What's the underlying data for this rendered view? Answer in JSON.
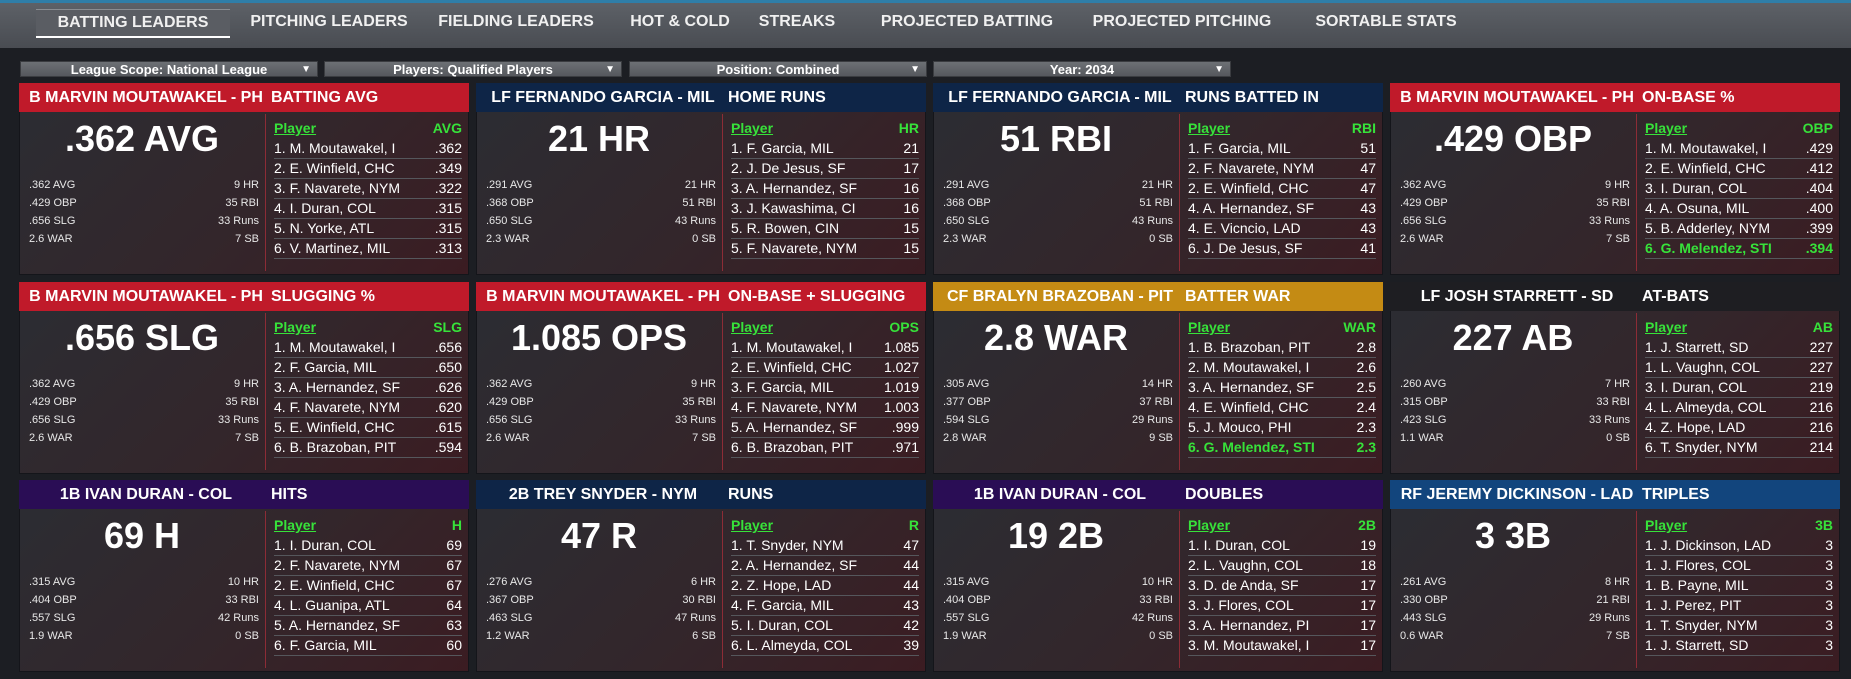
{
  "tabs": [
    "BATTING LEADERS",
    "PITCHING LEADERS",
    "FIELDING LEADERS",
    "HOT & COLD",
    "STREAKS",
    "PROJECTED BATTING",
    "PROJECTED PITCHING",
    "SORTABLE STATS"
  ],
  "filters": [
    "League Scope: National League",
    "Players: Qualified Players",
    "Position: Combined",
    "Year: 2034"
  ],
  "colors": {
    "red": "#c01a2a",
    "navy": "#0e2547",
    "gold": "#c48b14",
    "dark": "#1e1e22",
    "purple": "#2a0d55",
    "blue": "#12457d",
    "highlight": "#37e23a"
  },
  "cards": [
    {
      "name": "B MARVIN MOUTAWAKEL - PH",
      "category": "BATTING AVG",
      "color": "red",
      "big": ".362 AVG",
      "stats": [
        [
          ".362 AVG",
          "9 HR"
        ],
        [
          ".429 OBP",
          "35 RBI"
        ],
        [
          ".656 SLG",
          "33 Runs"
        ],
        [
          "2.6 WAR",
          "7 SB"
        ]
      ],
      "col": "AVG",
      "rows": [
        [
          "1. M. Moutawakel, I",
          ".362"
        ],
        [
          "2. E. Winfield, CHC",
          ".349"
        ],
        [
          "3. F. Navarete, NYM",
          ".322"
        ],
        [
          "4. I. Duran, COL",
          ".315"
        ],
        [
          "5. N. Yorke, ATL",
          ".315"
        ],
        [
          "6. V. Martinez, MIL",
          ".313"
        ]
      ],
      "hl": -1
    },
    {
      "name": "LF FERNANDO GARCIA - MIL",
      "category": "HOME RUNS",
      "color": "navy",
      "big": "21 HR",
      "stats": [
        [
          ".291 AVG",
          "21 HR"
        ],
        [
          ".368 OBP",
          "51 RBI"
        ],
        [
          ".650 SLG",
          "43 Runs"
        ],
        [
          "2.3 WAR",
          "0 SB"
        ]
      ],
      "col": "HR",
      "rows": [
        [
          "1. F. Garcia, MIL",
          "21"
        ],
        [
          "2. J. De Jesus, SF",
          "17"
        ],
        [
          "3. A. Hernandez, SF",
          "16"
        ],
        [
          "3. J. Kawashima, CI",
          "16"
        ],
        [
          "5. R. Bowen, CIN",
          "15"
        ],
        [
          "5. F. Navarete, NYM",
          "15"
        ]
      ],
      "hl": -1
    },
    {
      "name": "LF FERNANDO GARCIA - MIL",
      "category": "RUNS BATTED IN",
      "color": "navy",
      "big": "51 RBI",
      "stats": [
        [
          ".291 AVG",
          "21 HR"
        ],
        [
          ".368 OBP",
          "51 RBI"
        ],
        [
          ".650 SLG",
          "43 Runs"
        ],
        [
          "2.3 WAR",
          "0 SB"
        ]
      ],
      "col": "RBI",
      "rows": [
        [
          "1. F. Garcia, MIL",
          "51"
        ],
        [
          "2. F. Navarete, NYM",
          "47"
        ],
        [
          "2. E. Winfield, CHC",
          "47"
        ],
        [
          "4. A. Hernandez, SF",
          "43"
        ],
        [
          "4. E. Vicncio, LAD",
          "43"
        ],
        [
          "6. J. De Jesus, SF",
          "41"
        ]
      ],
      "hl": -1
    },
    {
      "name": "B MARVIN MOUTAWAKEL - PH",
      "category": "ON-BASE %",
      "color": "red",
      "big": ".429 OBP",
      "stats": [
        [
          ".362 AVG",
          "9 HR"
        ],
        [
          ".429 OBP",
          "35 RBI"
        ],
        [
          ".656 SLG",
          "33 Runs"
        ],
        [
          "2.6 WAR",
          "7 SB"
        ]
      ],
      "col": "OBP",
      "rows": [
        [
          "1. M. Moutawakel, I",
          ".429"
        ],
        [
          "2. E. Winfield, CHC",
          ".412"
        ],
        [
          "3. I. Duran, COL",
          ".404"
        ],
        [
          "4. A. Osuna, MIL",
          ".400"
        ],
        [
          "5. B. Adderley, NYM",
          ".399"
        ],
        [
          "6. G. Melendez, STI",
          ".394"
        ]
      ],
      "hl": 5
    },
    {
      "name": "B MARVIN MOUTAWAKEL - PH",
      "category": "SLUGGING %",
      "color": "red",
      "big": ".656 SLG",
      "stats": [
        [
          ".362 AVG",
          "9 HR"
        ],
        [
          ".429 OBP",
          "35 RBI"
        ],
        [
          ".656 SLG",
          "33 Runs"
        ],
        [
          "2.6 WAR",
          "7 SB"
        ]
      ],
      "col": "SLG",
      "rows": [
        [
          "1. M. Moutawakel, I",
          ".656"
        ],
        [
          "2. F. Garcia, MIL",
          ".650"
        ],
        [
          "3. A. Hernandez, SF",
          ".626"
        ],
        [
          "4. F. Navarete, NYM",
          ".620"
        ],
        [
          "5. E. Winfield, CHC",
          ".615"
        ],
        [
          "6. B. Brazoban, PIT",
          ".594"
        ]
      ],
      "hl": -1
    },
    {
      "name": "B MARVIN MOUTAWAKEL - PH",
      "category": "ON-BASE + SLUGGING",
      "color": "red",
      "big": "1.085 OPS",
      "stats": [
        [
          ".362 AVG",
          "9 HR"
        ],
        [
          ".429 OBP",
          "35 RBI"
        ],
        [
          ".656 SLG",
          "33 Runs"
        ],
        [
          "2.6 WAR",
          "7 SB"
        ]
      ],
      "col": "OPS",
      "rows": [
        [
          "1. M. Moutawakel, I",
          "1.085"
        ],
        [
          "2. E. Winfield, CHC",
          "1.027"
        ],
        [
          "3. F. Garcia, MIL",
          "1.019"
        ],
        [
          "4. F. Navarete, NYM",
          "1.003"
        ],
        [
          "5. A. Hernandez, SF",
          ".999"
        ],
        [
          "6. B. Brazoban, PIT",
          ".971"
        ]
      ],
      "hl": -1
    },
    {
      "name": "CF BRALYN BRAZOBAN - PIT",
      "category": "BATTER WAR",
      "color": "gold",
      "big": "2.8 WAR",
      "stats": [
        [
          ".305 AVG",
          "14 HR"
        ],
        [
          ".377 OBP",
          "37 RBI"
        ],
        [
          ".594 SLG",
          "29 Runs"
        ],
        [
          "2.8 WAR",
          "9 SB"
        ]
      ],
      "col": "WAR",
      "rows": [
        [
          "1. B. Brazoban, PIT",
          "2.8"
        ],
        [
          "2. M. Moutawakel, I",
          "2.6"
        ],
        [
          "3. A. Hernandez, SF",
          "2.5"
        ],
        [
          "4. E. Winfield, CHC",
          "2.4"
        ],
        [
          "5. J. Mouco, PHI",
          "2.3"
        ],
        [
          "6. G. Melendez, STI",
          "2.3"
        ]
      ],
      "hl": 5
    },
    {
      "name": "LF JOSH STARRETT - SD",
      "category": "AT-BATS",
      "color": "dark",
      "big": "227 AB",
      "stats": [
        [
          ".260 AVG",
          "7 HR"
        ],
        [
          ".315 OBP",
          "33 RBI"
        ],
        [
          ".423 SLG",
          "33 Runs"
        ],
        [
          "1.1 WAR",
          "0 SB"
        ]
      ],
      "col": "AB",
      "rows": [
        [
          "1. J. Starrett, SD",
          "227"
        ],
        [
          "1. L. Vaughn, COL",
          "227"
        ],
        [
          "3. I. Duran, COL",
          "219"
        ],
        [
          "4. L. Almeyda, COL",
          "216"
        ],
        [
          "4. Z. Hope, LAD",
          "216"
        ],
        [
          "6. T. Snyder, NYM",
          "214"
        ]
      ],
      "hl": -1
    },
    {
      "name": "1B IVAN DURAN - COL",
      "category": "HITS",
      "color": "purple",
      "big": "69 H",
      "stats": [
        [
          ".315 AVG",
          "10 HR"
        ],
        [
          ".404 OBP",
          "33 RBI"
        ],
        [
          ".557 SLG",
          "42 Runs"
        ],
        [
          "1.9 WAR",
          "0 SB"
        ]
      ],
      "col": "H",
      "rows": [
        [
          "1. I. Duran, COL",
          "69"
        ],
        [
          "2. F. Navarete, NYM",
          "67"
        ],
        [
          "2. E. Winfield, CHC",
          "67"
        ],
        [
          "4. L. Guanipa, ATL",
          "64"
        ],
        [
          "5. A. Hernandez, SF",
          "63"
        ],
        [
          "6. F. Garcia, MIL",
          "60"
        ]
      ],
      "hl": -1
    },
    {
      "name": "2B TREY SNYDER - NYM",
      "category": "RUNS",
      "color": "navy",
      "big": "47 R",
      "stats": [
        [
          ".276 AVG",
          "6 HR"
        ],
        [
          ".367 OBP",
          "30 RBI"
        ],
        [
          ".463 SLG",
          "47 Runs"
        ],
        [
          "1.2 WAR",
          "6 SB"
        ]
      ],
      "col": "R",
      "rows": [
        [
          "1. T. Snyder, NYM",
          "47"
        ],
        [
          "2. A. Hernandez, SF",
          "44"
        ],
        [
          "2. Z. Hope, LAD",
          "44"
        ],
        [
          "4. F. Garcia, MIL",
          "43"
        ],
        [
          "5. I. Duran, COL",
          "42"
        ],
        [
          "6. L. Almeyda, COL",
          "39"
        ]
      ],
      "hl": -1
    },
    {
      "name": "1B IVAN DURAN - COL",
      "category": "DOUBLES",
      "color": "purple",
      "big": "19 2B",
      "stats": [
        [
          ".315 AVG",
          "10 HR"
        ],
        [
          ".404 OBP",
          "33 RBI"
        ],
        [
          ".557 SLG",
          "42 Runs"
        ],
        [
          "1.9 WAR",
          "0 SB"
        ]
      ],
      "col": "2B",
      "rows": [
        [
          "1. I. Duran, COL",
          "19"
        ],
        [
          "2. L. Vaughn, COL",
          "18"
        ],
        [
          "3. D. de Anda, SF",
          "17"
        ],
        [
          "3. J. Flores, COL",
          "17"
        ],
        [
          "3. A. Hernandez, PI",
          "17"
        ],
        [
          "3. M. Moutawakel, I",
          "17"
        ]
      ],
      "hl": -1
    },
    {
      "name": "RF JEREMY DICKINSON - LAD",
      "category": "TRIPLES",
      "color": "blue",
      "big": "3 3B",
      "stats": [
        [
          ".261 AVG",
          "8 HR"
        ],
        [
          ".330 OBP",
          "21 RBI"
        ],
        [
          ".443 SLG",
          "29 Runs"
        ],
        [
          "0.6 WAR",
          "7 SB"
        ]
      ],
      "col": "3B",
      "rows": [
        [
          "1. J. Dickinson, LAD",
          "3"
        ],
        [
          "1. J. Flores, COL",
          "3"
        ],
        [
          "1. B. Payne, MIL",
          "3"
        ],
        [
          "1. J. Perez, PIT",
          "3"
        ],
        [
          "1. T. Snyder, NYM",
          "3"
        ],
        [
          "1. J. Starrett, SD",
          "3"
        ]
      ],
      "hl": -1
    }
  ]
}
